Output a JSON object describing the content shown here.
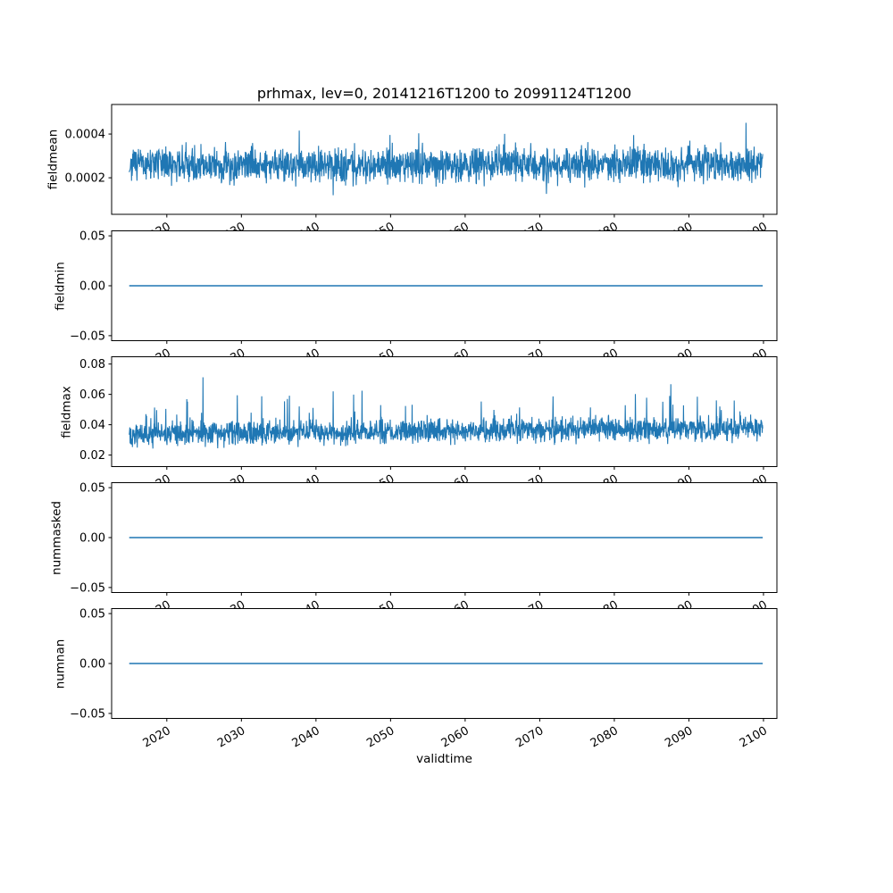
{
  "figure": {
    "background": "#ffffff"
  },
  "chart_data": {
    "type": "line",
    "title": "prhmax, lev=0, 20141216T1200 to 20991124T1200",
    "xlabel": "validtime",
    "line_color": "#1f77b4",
    "axis_color": "#000000",
    "grid": false,
    "legend": null,
    "x_range": [
      2014.96,
      2099.9
    ],
    "xlim": [
      2012.6,
      2101.8
    ],
    "xticks": [
      2020,
      2030,
      2040,
      2050,
      2060,
      2070,
      2080,
      2090,
      2100
    ],
    "xtick_labels": [
      "2020",
      "2030",
      "2040",
      "2050",
      "2060",
      "2070",
      "2080",
      "2090",
      "2100"
    ],
    "points_per_series": 2200,
    "subplots": [
      {
        "ylabel": "fieldmean",
        "ylim": [
          3.3e-05,
          0.000535
        ],
        "yticks": [
          0.0002,
          0.0004
        ],
        "ytick_labels": [
          "0.0002",
          "0.0004"
        ],
        "signal": {
          "kind": "noise",
          "base": 0.00026,
          "trend": 0,
          "amplitude": 0.000115,
          "spike_prob": 0.025,
          "spike_amplitude": 0.00014,
          "dip_prob": 0.02,
          "dip_amplitude": 7e-05,
          "min": 0.0001,
          "max": 0.00051,
          "summary": "dense random noise around 0.00026; typical band 0.00015-0.00038; peaks to ~0.0005; no trend"
        }
      },
      {
        "ylabel": "fieldmin",
        "ylim": [
          -0.055,
          0.055
        ],
        "yticks": [
          0.05,
          0,
          -0.05
        ],
        "ytick_labels": [
          "0.05",
          "0.00",
          "−0.05"
        ],
        "signal": {
          "kind": "constant",
          "value": 0,
          "summary": "constant 0.0 over the whole period"
        }
      },
      {
        "ylabel": "fieldmax",
        "ylim": [
          0.0124,
          0.0848
        ],
        "yticks": [
          0.02,
          0.04,
          0.06,
          0.08
        ],
        "ytick_labels": [
          "0.02",
          "0.04",
          "0.06",
          "0.08"
        ],
        "signal": {
          "kind": "noise",
          "base": 0.034,
          "trend": 0.004,
          "amplitude": 0.0115,
          "spike_prob": 0.035,
          "spike_amplitude": 0.028,
          "dip_prob": 0,
          "dip_amplitude": 0,
          "min": 0.018,
          "max": 0.082,
          "summary": "dense random noise around 0.035; typical band 0.02-0.055; peaks to ~0.08; slight upward drift"
        }
      },
      {
        "ylabel": "nummasked",
        "ylim": [
          -0.055,
          0.055
        ],
        "yticks": [
          0.05,
          0,
          -0.05
        ],
        "ytick_labels": [
          "0.05",
          "0.00",
          "−0.05"
        ],
        "signal": {
          "kind": "constant",
          "value": 0,
          "summary": "constant 0.0 over the whole period"
        }
      },
      {
        "ylabel": "numnan",
        "ylim": [
          -0.055,
          0.055
        ],
        "yticks": [
          0.05,
          0,
          -0.05
        ],
        "ytick_labels": [
          "0.05",
          "0.00",
          "−0.05"
        ],
        "signal": {
          "kind": "constant",
          "value": 0,
          "summary": "constant 0.0 over the whole period"
        }
      }
    ]
  }
}
